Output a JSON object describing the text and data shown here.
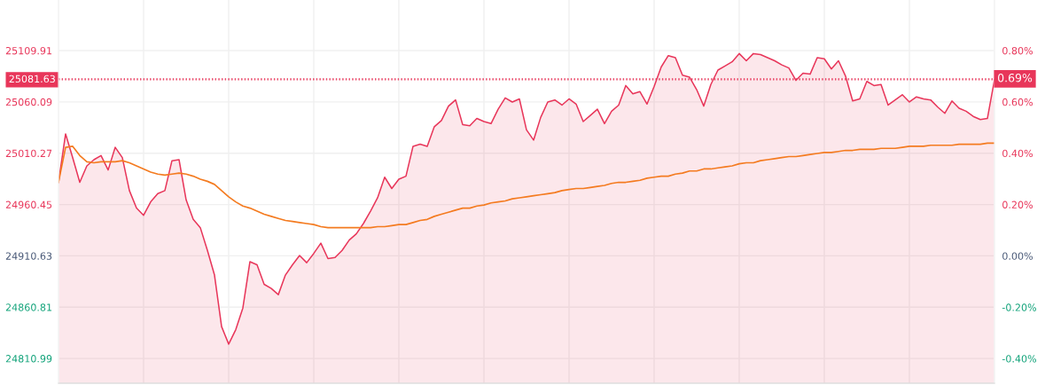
{
  "chart_data": {
    "type": "area",
    "categories": [
      null,
      null,
      null,
      null,
      null,
      null,
      null,
      null,
      null,
      null,
      null,
      null,
      null,
      null,
      null,
      null,
      null,
      null,
      null,
      null,
      null,
      null,
      null,
      null,
      null,
      null,
      null,
      null,
      null,
      null,
      null,
      null,
      null,
      null,
      null,
      null,
      null,
      null,
      null,
      null,
      null,
      null,
      null,
      null,
      null,
      null,
      null,
      null,
      null,
      null,
      null,
      null,
      null,
      null,
      null,
      null,
      null,
      null,
      null,
      null,
      null,
      null,
      null,
      null,
      null,
      null,
      null,
      null,
      null,
      null,
      null,
      null,
      null,
      null,
      null,
      null,
      null,
      null,
      null,
      null,
      null,
      null,
      null,
      null,
      null,
      null,
      null,
      null,
      null,
      null,
      null,
      null,
      null,
      null,
      null,
      null,
      null,
      null,
      null,
      null,
      null,
      null,
      null,
      null,
      null,
      null,
      null,
      null,
      null,
      null,
      null,
      null,
      null,
      null,
      null,
      null,
      null,
      null,
      null,
      null,
      null,
      null,
      null,
      null,
      null,
      null,
      null,
      null,
      null,
      null,
      null,
      null,
      null
    ],
    "series": [
      {
        "color": "#e8365a",
        "values": [
          24982,
          25029,
          25006,
          24982,
          24998,
          25004,
          25008,
          24994,
          25016,
          25006,
          24974,
          24957,
          24950,
          24963,
          24971,
          24974,
          25003,
          25004,
          24965,
          24946,
          24938,
          24916,
          24892,
          24842,
          24825,
          24839,
          24860,
          24905,
          24902,
          24883,
          24879,
          24873,
          24892,
          24902,
          24911,
          24904,
          24913,
          24923,
          24908,
          24909,
          24916,
          24926,
          24932,
          24942,
          24954,
          24967,
          24987,
          24976,
          24985,
          24988,
          25017,
          25019,
          25017,
          25036,
          25042,
          25056,
          25062,
          25038,
          25037,
          25044,
          25041,
          25039,
          25053,
          25064,
          25060,
          25063,
          25033,
          25023,
          25045,
          25060,
          25062,
          25057,
          25063,
          25058,
          25041,
          25047,
          25053,
          25039,
          25051,
          25057,
          25076,
          25068,
          25070,
          25058,
          25075,
          25094,
          25105,
          25103,
          25086,
          25084,
          25072,
          25056,
          25077,
          25091,
          25095,
          25099,
          25107,
          25100,
          25107,
          25106,
          25103,
          25100,
          25096,
          25093,
          25081,
          25088,
          25087,
          25103,
          25102,
          25092,
          25100,
          25085,
          25061,
          25063,
          25080,
          25076,
          25077,
          25057,
          25062,
          25067,
          25060,
          25065,
          25063,
          25062,
          25055,
          25049,
          25061,
          25054,
          25051,
          25046,
          25043,
          25044,
          25081.63
        ]
      },
      {
        "type": "line",
        "color": "#f47b20",
        "values": [
          24982,
          25016,
          25017,
          25008,
          25002,
          25001,
          25002,
          25002,
          25002,
          25003,
          25001,
          24998,
          24995,
          24992,
          24990,
          24989,
          24990,
          24991,
          24990,
          24988,
          24985,
          24983,
          24980,
          24974,
          24968,
          24963,
          24959,
          24957,
          24954,
          24951,
          24949,
          24947,
          24945,
          24944,
          24943,
          24942,
          24941,
          24939,
          24938,
          24938,
          24938,
          24938,
          24938,
          24938,
          24938,
          24939,
          24939,
          24940,
          24941,
          24941,
          24943,
          24945,
          24946,
          24949,
          24951,
          24953,
          24955,
          24957,
          24957,
          24959,
          24960,
          24962,
          24963,
          24964,
          24966,
          24967,
          24968,
          24969,
          24970,
          24971,
          24972,
          24974,
          24975,
          24976,
          24976,
          24977,
          24978,
          24979,
          24981,
          24982,
          24982,
          24983,
          24984,
          24986,
          24987,
          24988,
          24988,
          24990,
          24991,
          24993,
          24993,
          24995,
          24995,
          24996,
          24997,
          24998,
          25000,
          25001,
          25001,
          25003,
          25004,
          25005,
          25006,
          25007,
          25007,
          25008,
          25009,
          25010,
          25011,
          25011,
          25012,
          25013,
          25013,
          25014,
          25014,
          25014,
          25015,
          25015,
          25015,
          25016,
          25017,
          25017,
          25017,
          25018,
          25018,
          25018,
          25018,
          25019,
          25019,
          25019,
          25019,
          25020,
          25020
        ]
      }
    ],
    "ylim": [
      24787,
      25159
    ],
    "yticks": [
      24810.99,
      24860.81,
      24910.63,
      24960.45,
      25010.27,
      25060.09,
      25109.91
    ],
    "y2lim": [
      -0.496,
      0.997
    ],
    "y2ticks": [
      {
        "value": -0.4,
        "label": "-0.40%"
      },
      {
        "value": -0.2,
        "label": "-0.20%"
      },
      {
        "value": 0,
        "label": "0.00%"
      },
      {
        "value": 0.2,
        "label": "0.20%"
      },
      {
        "value": 0.4,
        "label": "0.40%"
      },
      {
        "value": 0.6,
        "label": "0.60%"
      },
      {
        "value": 0.8,
        "label": "0.80%"
      }
    ],
    "ref_lines": [
      {
        "axis": "y",
        "value": 25081.63,
        "label": "25081.63",
        "color": "#e8365a",
        "line_style": "dotted"
      },
      {
        "axis": "y2",
        "value": 0.69,
        "label": "0.69%",
        "color": "#e8365a",
        "line_style": "dotted"
      }
    ],
    "grid": true,
    "tick_labels": "y",
    "legend": false
  }
}
